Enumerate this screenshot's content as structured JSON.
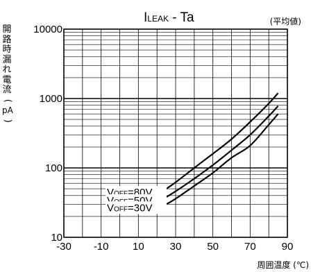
{
  "chart_data": {
    "type": "line",
    "title_main": "I",
    "title_sub": "LEAK",
    "title_rest": " - Ta",
    "subtitle": "(平均値)",
    "xlabel": "周囲温度 (℃)",
    "ylabel_chars": [
      "開",
      "路",
      "時",
      "漏",
      "れ",
      "電",
      "流"
    ],
    "ylabel_open": "(",
    "ylabel_unit": "pA",
    "ylabel_close": ")",
    "xlim": [
      -30,
      90
    ],
    "ylim": [
      10,
      10000
    ],
    "yscale": "log",
    "grid": true,
    "xticks": [
      -30,
      -10,
      10,
      30,
      50,
      70,
      90
    ],
    "xtick_labels": [
      "-30",
      "-10",
      "10",
      "30",
      "50",
      "70",
      "90"
    ],
    "yticks": [
      10,
      100,
      1000,
      10000
    ],
    "ytick_labels": [
      "10",
      "100",
      "1000",
      "10000"
    ],
    "series": [
      {
        "label_main": "V",
        "label_sub": "OFF",
        "label_rest": "=80V",
        "x": [
          25,
          30,
          40,
          50,
          60,
          70,
          80,
          85
        ],
        "y": [
          50,
          62,
          100,
          160,
          260,
          460,
          850,
          1200
        ]
      },
      {
        "label_main": "V",
        "label_sub": "OFF",
        "label_rest": "=50V",
        "x": [
          25,
          30,
          40,
          50,
          60,
          70,
          80,
          85
        ],
        "y": [
          38,
          46,
          70,
          110,
          180,
          300,
          560,
          780
        ]
      },
      {
        "label_main": "V",
        "label_sub": "OFF",
        "label_rest": "=30V",
        "x": [
          25,
          30,
          40,
          50,
          60,
          70,
          80,
          85
        ],
        "y": [
          30,
          36,
          55,
          85,
          140,
          210,
          420,
          600
        ]
      }
    ]
  }
}
